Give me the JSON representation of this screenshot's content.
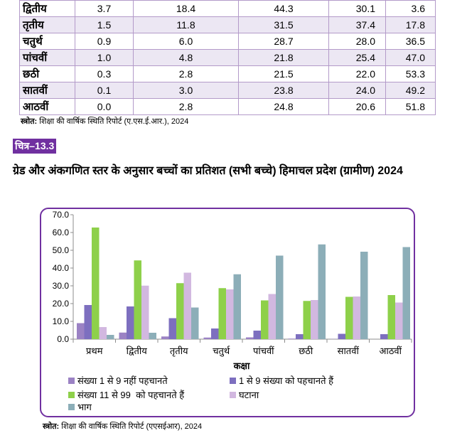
{
  "table": {
    "rows": [
      {
        "label": "द्वितीय",
        "values": [
          "3.7",
          "18.4",
          "44.3",
          "30.1",
          "3.6"
        ]
      },
      {
        "label": "तृतीय",
        "values": [
          "1.5",
          "11.8",
          "31.5",
          "37.4",
          "17.8"
        ]
      },
      {
        "label": "चतुर्थ",
        "values": [
          "0.9",
          "6.0",
          "28.7",
          "28.0",
          "36.5"
        ]
      },
      {
        "label": "पांचवीं",
        "values": [
          "1.0",
          "4.8",
          "21.8",
          "25.4",
          "47.0"
        ]
      },
      {
        "label": "छठी",
        "values": [
          "0.3",
          "2.8",
          "21.5",
          "22.0",
          "53.3"
        ]
      },
      {
        "label": "सातवीं",
        "values": [
          "0.1",
          "3.0",
          "23.8",
          "24.0",
          "49.2"
        ]
      },
      {
        "label": "आठवीं",
        "values": [
          "0.0",
          "2.8",
          "24.8",
          "20.6",
          "51.8"
        ]
      }
    ]
  },
  "source_top": {
    "label": "स्त्रोत:",
    "text": " शिक्षा की वार्षिक स्थिति रिपोर्ट (ए.एस.ई.आर.), 2024"
  },
  "figure_label": "चित्र–13.3",
  "heading": "ग्रेड और अंकगणित स्तर के अनुसार बच्चों का प्रतिशत (सभी बच्चे) हिमाचल प्रदेश (ग्रामीण) 2024",
  "source_bottom": {
    "label": "स्त्रोत:",
    "text": " शिक्षा की वार्षिक स्थिति रिपोर्ट (एएसईआर), 2024"
  },
  "chart_data": {
    "type": "bar",
    "categories": [
      "प्रथम",
      "द्वितीय",
      "तृतीय",
      "चतुर्थ",
      "पांचवीं",
      "छठी",
      "सातवीं",
      "आठवीं"
    ],
    "series": [
      {
        "name": "संख्या 1 से 9 नहीं पहचानते",
        "color": "#9b82c4",
        "values": [
          9.0,
          3.7,
          1.5,
          0.9,
          1.0,
          0.3,
          0.1,
          0.0
        ]
      },
      {
        "name": "1 से 9 संख्या को पहचानते हैं",
        "color": "#7d6fbf",
        "values": [
          19.2,
          18.4,
          11.8,
          6.0,
          4.8,
          2.8,
          3.0,
          2.8
        ]
      },
      {
        "name": "संख्या 11 से 99  को पहचानते हैं",
        "color": "#8ed04a",
        "values": [
          62.8,
          44.3,
          31.5,
          28.7,
          21.8,
          21.5,
          23.8,
          24.8
        ]
      },
      {
        "name": "घटाना",
        "color": "#d2b8e0",
        "values": [
          6.8,
          30.1,
          37.4,
          28.0,
          25.4,
          22.0,
          24.0,
          20.6
        ]
      },
      {
        "name": "भाग",
        "color": "#8caeb8",
        "values": [
          2.4,
          3.6,
          17.8,
          36.5,
          47.0,
          53.3,
          49.2,
          51.8
        ]
      }
    ],
    "ylim": [
      0,
      70
    ],
    "yticks": [
      "0.0",
      "10.0",
      "20.0",
      "30.0",
      "40.0",
      "50.0",
      "60.0",
      "70.0"
    ],
    "xlabel": "कक्षा",
    "ylabel": "",
    "grid": false,
    "legend_position": "bottom"
  }
}
